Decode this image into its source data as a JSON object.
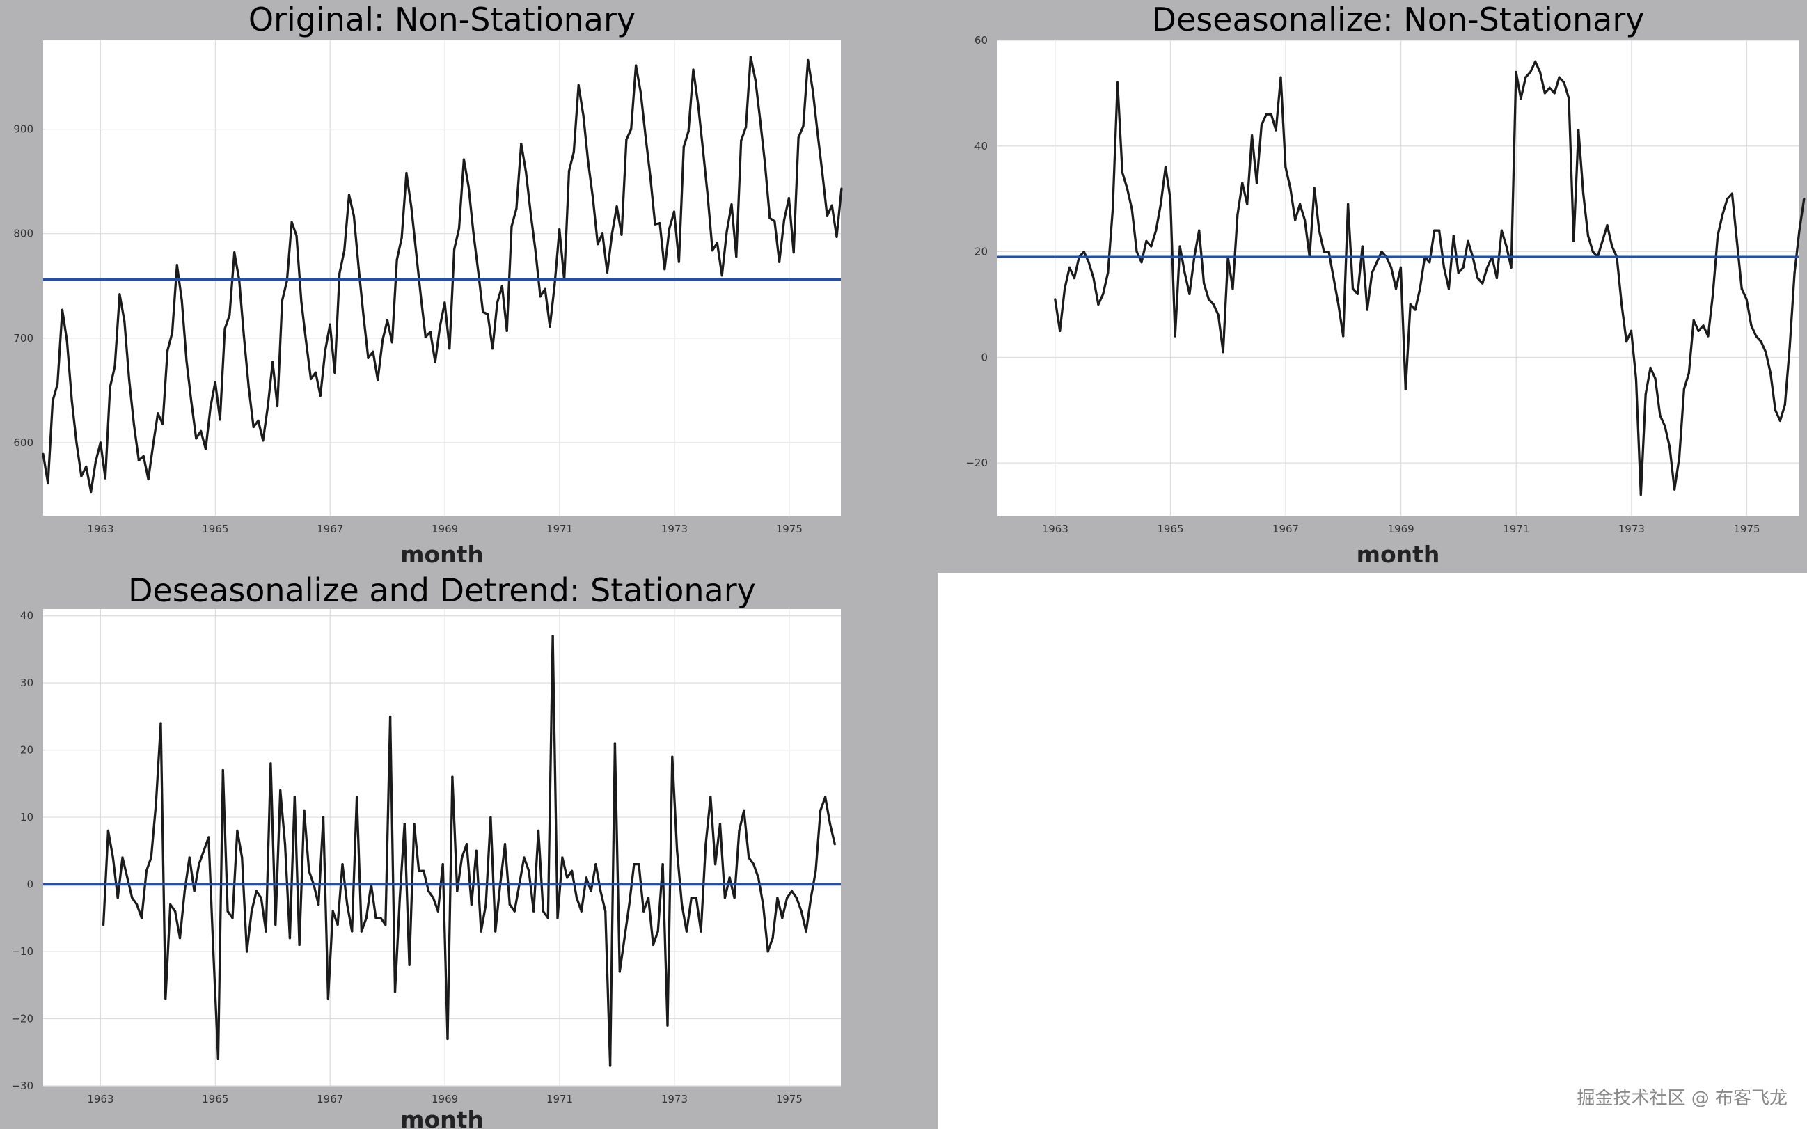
{
  "chart_data": [
    {
      "type": "line",
      "title": "Original: Non-Stationary",
      "xlabel": "month",
      "ylabel": "",
      "xlim": [
        1962.0,
        1975.9
      ],
      "ylim": [
        530,
        985
      ],
      "xticks": [
        1963,
        1965,
        1967,
        1969,
        1971,
        1973,
        1975
      ],
      "yticks": [
        600,
        700,
        800,
        900
      ],
      "reference_line": 756,
      "x_start": 1962.0,
      "x_step": 0.0833,
      "series": [
        {
          "name": "series",
          "values": [
            589,
            561,
            640,
            656,
            727,
            697,
            640,
            599,
            568,
            577,
            553,
            582,
            600,
            566,
            653,
            673,
            742,
            716,
            660,
            617,
            583,
            587,
            565,
            598,
            628,
            618,
            688,
            705,
            770,
            736,
            678,
            639,
            604,
            611,
            594,
            634,
            658,
            622,
            709,
            722,
            782,
            756,
            702,
            653,
            615,
            621,
            602,
            635,
            677,
            635,
            736,
            755,
            811,
            798,
            735,
            697,
            661,
            667,
            645,
            688,
            713,
            667,
            762,
            784,
            837,
            817,
            767,
            722,
            681,
            687,
            660,
            698,
            717,
            696,
            775,
            796,
            858,
            826,
            783,
            740,
            701,
            706,
            677,
            711,
            734,
            690,
            785,
            805,
            871,
            845,
            801,
            764,
            725,
            723,
            690,
            734,
            750,
            707,
            807,
            824,
            886,
            859,
            819,
            783,
            740,
            747,
            711,
            751,
            804,
            756,
            860,
            878,
            942,
            913,
            869,
            834,
            790,
            800,
            763,
            800,
            826,
            799,
            890,
            900,
            961,
            935,
            894,
            855,
            809,
            810,
            766,
            805,
            821,
            773,
            883,
            898,
            957,
            924,
            881,
            837,
            784,
            791,
            760,
            802,
            828,
            778,
            889,
            902,
            969,
            947,
            908,
            867,
            815,
            812,
            773,
            813,
            834,
            782,
            892,
            903,
            966,
            937,
            896,
            858,
            817,
            827,
            797,
            843
          ]
        }
      ]
    },
    {
      "type": "line",
      "title": "Deseasonalize: Non-Stationary",
      "xlabel": "month",
      "ylabel": "",
      "xlim": [
        1962.0,
        1975.9
      ],
      "ylim": [
        -30,
        60
      ],
      "xticks": [
        1963,
        1965,
        1967,
        1969,
        1971,
        1973,
        1975
      ],
      "yticks": [
        -20,
        0,
        20,
        40,
        60
      ],
      "reference_line": 19,
      "x_start": 1963.0,
      "x_step": 0.0833,
      "series": [
        {
          "name": "series",
          "values": [
            11,
            5,
            13,
            17,
            15,
            19,
            20,
            18,
            15,
            10,
            12,
            16,
            28,
            52,
            35,
            32,
            28,
            20,
            18,
            22,
            21,
            24,
            29,
            36,
            30,
            4,
            21,
            16,
            12,
            19,
            24,
            14,
            11,
            10,
            8,
            1,
            19,
            13,
            27,
            33,
            29,
            42,
            33,
            44,
            46,
            46,
            43,
            53,
            36,
            32,
            26,
            29,
            26,
            19,
            32,
            24,
            20,
            20,
            15,
            10,
            4,
            29,
            13,
            12,
            21,
            9,
            16,
            18,
            20,
            19,
            17,
            13,
            17,
            -6,
            10,
            9,
            13,
            19,
            18,
            24,
            24,
            17,
            13,
            23,
            16,
            17,
            22,
            19,
            15,
            14,
            17,
            19,
            15,
            24,
            21,
            17,
            54,
            49,
            53,
            54,
            56,
            54,
            50,
            51,
            50,
            53,
            52,
            49,
            22,
            43,
            31,
            23,
            20,
            19,
            22,
            25,
            21,
            19,
            10,
            3,
            5,
            -4,
            -26,
            -7,
            -2,
            -4,
            -11,
            -13,
            -17,
            -25,
            -19,
            -6,
            -3,
            7,
            5,
            6,
            4,
            12,
            23,
            27,
            30,
            31,
            22,
            13,
            11,
            6,
            4,
            3,
            1,
            -3,
            -10,
            -12,
            -9,
            2,
            16,
            24,
            30
          ]
        }
      ]
    },
    {
      "type": "line",
      "title": "Deseasonalize and Detrend: Stationary",
      "xlabel": "month",
      "ylabel": "",
      "xlim": [
        1962.0,
        1975.9
      ],
      "ylim": [
        -30,
        41
      ],
      "xticks": [
        1963,
        1965,
        1967,
        1969,
        1971,
        1973,
        1975
      ],
      "yticks": [
        -30,
        -20,
        -10,
        0,
        10,
        20,
        30,
        40
      ],
      "reference_line": 0,
      "x_start": 1963.05,
      "x_step": 0.0833,
      "series": [
        {
          "name": "series",
          "values": [
            -6,
            8,
            4,
            -2,
            4,
            1,
            -2,
            -3,
            -5,
            2,
            4,
            12,
            24,
            -17,
            -3,
            -4,
            -8,
            -1,
            4,
            -1,
            3,
            5,
            7,
            -10,
            -26,
            17,
            -4,
            -5,
            8,
            4,
            -10,
            -4,
            -1,
            -2,
            -7,
            18,
            -6,
            14,
            6,
            -8,
            13,
            -9,
            11,
            2,
            0,
            -3,
            10,
            -17,
            -4,
            -6,
            3,
            -3,
            -7,
            13,
            -7,
            -5,
            0,
            -5,
            -5,
            -6,
            25,
            -16,
            -2,
            9,
            -12,
            9,
            2,
            2,
            -1,
            -2,
            -4,
            3,
            -23,
            16,
            -1,
            4,
            6,
            -3,
            5,
            -7,
            -3,
            10,
            -7,
            0,
            6,
            -3,
            -4,
            0,
            4,
            2,
            -4,
            8,
            -4,
            -5,
            37,
            -5,
            4,
            1,
            2,
            -2,
            -4,
            1,
            -1,
            3,
            -1,
            -4,
            -27,
            21,
            -13,
            -8,
            -3,
            3,
            3,
            -4,
            -2,
            -9,
            -7,
            3,
            -21,
            19,
            5,
            -3,
            -7,
            -2,
            -2,
            -7,
            6,
            13,
            3,
            9,
            -2,
            1,
            -2,
            8,
            11,
            4,
            3,
            1,
            -3,
            -10,
            -8,
            -2,
            -5,
            -2,
            -1,
            -2,
            -4,
            -7,
            -2,
            2,
            11,
            13,
            9,
            6
          ]
        }
      ]
    }
  ],
  "watermark": "掘金技术社区 @ 布客飞龙"
}
